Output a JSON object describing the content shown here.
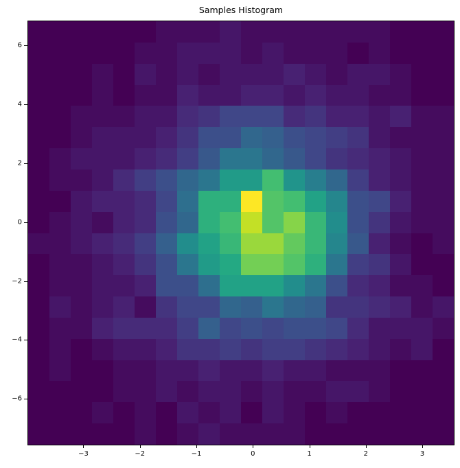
{
  "figure": {
    "background": "#ffffff",
    "text_color": "#000000"
  },
  "chart_data": {
    "type": "heatmap",
    "title": "Samples Histogram",
    "xlabel": "",
    "ylabel": "",
    "legend": "none",
    "grid": false,
    "bins_x": 20,
    "bins_y": 20,
    "x_range": [
      -3.99,
      3.57
    ],
    "y_range": [
      -7.58,
      6.85
    ],
    "x_tick_values": [
      -3,
      -2,
      -1,
      0,
      1,
      2,
      3
    ],
    "x_tick_labels": [
      "−3",
      "−2",
      "−1",
      "0",
      "1",
      "2",
      "3"
    ],
    "y_tick_values": [
      6,
      4,
      2,
      0,
      -2,
      -4,
      -6
    ],
    "y_tick_labels": [
      "6",
      "4",
      "2",
      "0",
      "−2",
      "−4",
      "−6"
    ],
    "colormap": "viridis",
    "colormap_stops": [
      "#440154",
      "#482475",
      "#414487",
      "#355f8d",
      "#2a788e",
      "#21918c",
      "#22a884",
      "#44bf70",
      "#7ad151",
      "#bddf26",
      "#fde725"
    ],
    "vmin": 0,
    "vmax": 33,
    "row_order": "top-to-bottom (y = +6.85 at first row)",
    "counts": [
      [
        0,
        0,
        0,
        0,
        0,
        0,
        1,
        1,
        1,
        2,
        1,
        1,
        1,
        1,
        1,
        1,
        1,
        0,
        0,
        0
      ],
      [
        0,
        0,
        0,
        0,
        0,
        1,
        1,
        2,
        2,
        2,
        1,
        2,
        1,
        1,
        1,
        0,
        1,
        0,
        0,
        0
      ],
      [
        0,
        0,
        0,
        1,
        0,
        2,
        1,
        2,
        1,
        2,
        2,
        2,
        3,
        2,
        1,
        2,
        2,
        1,
        0,
        0
      ],
      [
        0,
        0,
        0,
        1,
        0,
        1,
        1,
        3,
        2,
        2,
        3,
        3,
        2,
        3,
        2,
        2,
        1,
        1,
        0,
        0
      ],
      [
        0,
        0,
        1,
        1,
        1,
        2,
        2,
        4,
        5,
        7,
        7,
        7,
        4,
        5,
        3,
        3,
        2,
        3,
        1,
        1
      ],
      [
        0,
        0,
        1,
        2,
        2,
        2,
        3,
        5,
        8,
        8,
        11,
        10,
        8,
        7,
        6,
        5,
        2,
        1,
        1,
        1
      ],
      [
        0,
        1,
        2,
        2,
        2,
        3,
        4,
        6,
        9,
        13,
        13,
        11,
        9,
        7,
        5,
        4,
        3,
        2,
        1,
        1
      ],
      [
        0,
        1,
        1,
        2,
        4,
        6,
        8,
        11,
        13,
        18,
        18,
        23,
        17,
        14,
        11,
        6,
        3,
        2,
        1,
        1
      ],
      [
        0,
        0,
        2,
        3,
        3,
        4,
        7,
        12,
        21,
        21,
        33,
        24,
        23,
        19,
        15,
        8,
        7,
        3,
        1,
        1
      ],
      [
        0,
        1,
        2,
        1,
        3,
        4,
        8,
        11,
        21,
        23,
        30,
        24,
        27,
        22,
        16,
        8,
        5,
        2,
        1,
        1
      ],
      [
        1,
        1,
        2,
        3,
        4,
        6,
        10,
        16,
        19,
        22,
        28,
        28,
        25,
        22,
        15,
        9,
        3,
        1,
        0,
        1
      ],
      [
        0,
        1,
        1,
        2,
        3,
        5,
        8,
        13,
        18,
        20,
        26,
        26,
        24,
        21,
        13,
        6,
        5,
        2,
        0,
        0
      ],
      [
        0,
        1,
        1,
        2,
        2,
        3,
        8,
        8,
        12,
        19,
        19,
        19,
        16,
        13,
        8,
        4,
        3,
        1,
        1,
        0
      ],
      [
        0,
        2,
        1,
        2,
        3,
        1,
        5,
        7,
        7,
        11,
        10,
        13,
        11,
        10,
        5,
        5,
        4,
        3,
        1,
        2
      ],
      [
        0,
        1,
        1,
        3,
        4,
        4,
        4,
        6,
        10,
        7,
        8,
        7,
        8,
        8,
        7,
        4,
        2,
        2,
        2,
        1
      ],
      [
        0,
        1,
        0,
        1,
        2,
        2,
        3,
        5,
        5,
        6,
        5,
        6,
        6,
        5,
        4,
        3,
        2,
        1,
        2,
        0
      ],
      [
        0,
        1,
        0,
        0,
        1,
        1,
        2,
        2,
        3,
        2,
        2,
        3,
        2,
        2,
        1,
        1,
        1,
        0,
        0,
        0
      ],
      [
        0,
        0,
        0,
        0,
        1,
        1,
        2,
        1,
        2,
        2,
        1,
        2,
        1,
        1,
        2,
        2,
        1,
        0,
        0,
        0
      ],
      [
        0,
        0,
        0,
        1,
        0,
        1,
        0,
        2,
        1,
        2,
        0,
        2,
        1,
        0,
        1,
        0,
        0,
        0,
        0,
        0
      ],
      [
        0,
        0,
        0,
        0,
        0,
        1,
        0,
        1,
        2,
        1,
        1,
        1,
        1,
        0,
        0,
        0,
        0,
        0,
        0,
        0
      ]
    ]
  }
}
